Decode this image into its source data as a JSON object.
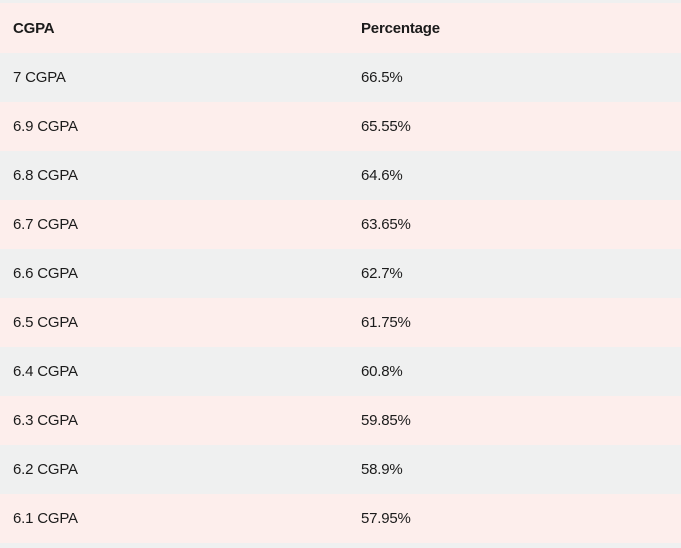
{
  "table": {
    "columns": [
      {
        "label": "CGPA"
      },
      {
        "label": "Percentage"
      }
    ],
    "rows": [
      {
        "cgpa": "7 CGPA",
        "percentage": "66.5%"
      },
      {
        "cgpa": "6.9 CGPA",
        "percentage": "65.55%"
      },
      {
        "cgpa": "6.8 CGPA",
        "percentage": "64.6%"
      },
      {
        "cgpa": "6.7 CGPA",
        "percentage": "63.65%"
      },
      {
        "cgpa": "6.6 CGPA",
        "percentage": "62.7%"
      },
      {
        "cgpa": "6.5 CGPA",
        "percentage": "61.75%"
      },
      {
        "cgpa": "6.4 CGPA",
        "percentage": "60.8%"
      },
      {
        "cgpa": "6.3 CGPA",
        "percentage": "59.85%"
      },
      {
        "cgpa": "6.2 CGPA",
        "percentage": "58.9%"
      },
      {
        "cgpa": "6.1 CGPA",
        "percentage": "57.95%"
      }
    ]
  },
  "colors": {
    "row_pink": "#fdeeec",
    "row_gray": "#eff0f0",
    "text": "#1b1b1b"
  },
  "chart_data": {
    "type": "table",
    "columns": [
      "CGPA",
      "Percentage"
    ],
    "rows": [
      [
        "7 CGPA",
        "66.5%"
      ],
      [
        "6.9 CGPA",
        "65.55%"
      ],
      [
        "6.8 CGPA",
        "64.6%"
      ],
      [
        "6.7 CGPA",
        "63.65%"
      ],
      [
        "6.6 CGPA",
        "62.7%"
      ],
      [
        "6.5 CGPA",
        "61.75%"
      ],
      [
        "6.4 CGPA",
        "60.8%"
      ],
      [
        "6.3 CGPA",
        "59.85%"
      ],
      [
        "6.2 CGPA",
        "58.9%"
      ],
      [
        "6.1 CGPA",
        "57.95%"
      ]
    ]
  }
}
